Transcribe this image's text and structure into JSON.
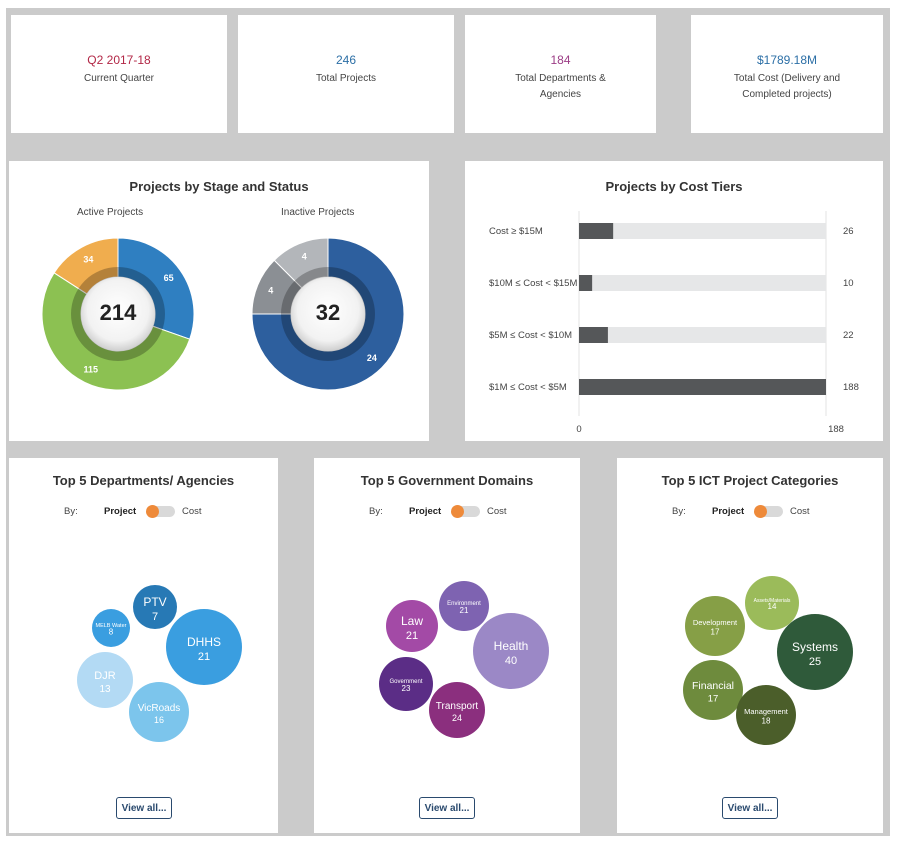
{
  "kpis": [
    {
      "value": "Q2 2017-18",
      "label": "Current Quarter",
      "color": "#b22746"
    },
    {
      "value": "246",
      "label": "Total Projects",
      "color": "#2c6fa6"
    },
    {
      "value": "184",
      "label_line1": "Total Departments &",
      "label_line2": "Agencies",
      "color": "#9c3d86"
    },
    {
      "value": "$1789.18M",
      "label_line1": "Total Cost (Delivery and",
      "label_line2": "Completed projects)",
      "color": "#2c6fa6"
    }
  ],
  "stage_status": {
    "title": "Projects by Stage and Status",
    "active": {
      "label": "Active Projects",
      "total": "214",
      "segments": [
        {
          "value": 65,
          "color": "#2f7fc1"
        },
        {
          "value": 115,
          "color": "#8cc152"
        },
        {
          "value": 34,
          "color": "#f0ad4e"
        }
      ]
    },
    "inactive": {
      "label": "Inactive Projects",
      "total": "32",
      "segments": [
        {
          "value": 24,
          "color": "#2d5f9e"
        },
        {
          "value": 4,
          "color": "#8b8f94"
        },
        {
          "value": 4,
          "color": "#b3b6ba"
        }
      ]
    }
  },
  "chart_data": {
    "type": "bar",
    "title": "Projects by Cost Tiers",
    "categories": [
      "Cost ≥ $15M",
      "$10M ≤ Cost < $15M",
      "$5M ≤ Cost < $10M",
      "$1M ≤ Cost < $5M"
    ],
    "values": [
      26,
      10,
      22,
      188
    ],
    "xlim": [
      0,
      188
    ],
    "tick_labels": [
      "0",
      "188"
    ]
  },
  "departments": {
    "title": "Top 5 Departments/ Agencies",
    "by": "By:",
    "opt1": "Project",
    "opt2": "Cost",
    "view_all": "View all...",
    "bubbles": [
      {
        "name": "PTV",
        "value": "7",
        "color": "#2779b5"
      },
      {
        "name": "MELB Water",
        "value": "8",
        "color": "#3a9ee0"
      },
      {
        "name": "DHHS",
        "value": "21",
        "color": "#3a9ee0"
      },
      {
        "name": "DJR",
        "value": "13",
        "color": "#b3daf4"
      },
      {
        "name": "VicRoads",
        "value": "16",
        "color": "#7cc5ec"
      }
    ]
  },
  "domains": {
    "title": "Top 5 Government Domains",
    "by": "By:",
    "opt1": "Project",
    "opt2": "Cost",
    "view_all": "View all...",
    "bubbles": [
      {
        "name": "Environment",
        "value": "21",
        "color": "#7e63b1"
      },
      {
        "name": "Law",
        "value": "21",
        "color": "#a34aa6"
      },
      {
        "name": "Health",
        "value": "40",
        "color": "#9b88c6"
      },
      {
        "name": "Government",
        "value": "23",
        "color": "#5b2d86"
      },
      {
        "name": "Transport",
        "value": "24",
        "color": "#8b2f7e"
      }
    ]
  },
  "ict": {
    "title": "Top 5 ICT Project Categories",
    "by": "By:",
    "opt1": "Project",
    "opt2": "Cost",
    "view_all": "View all...",
    "bubbles": [
      {
        "name": "Assets/Materials",
        "value": "14",
        "color": "#9bbb5a"
      },
      {
        "name": "Development",
        "value": "17",
        "color": "#869f46"
      },
      {
        "name": "Systems",
        "value": "25",
        "color": "#2f5a3a"
      },
      {
        "name": "Financial",
        "value": "17",
        "color": "#6e8b3d"
      },
      {
        "name": "Management",
        "value": "18",
        "color": "#4b5e2a"
      }
    ]
  }
}
